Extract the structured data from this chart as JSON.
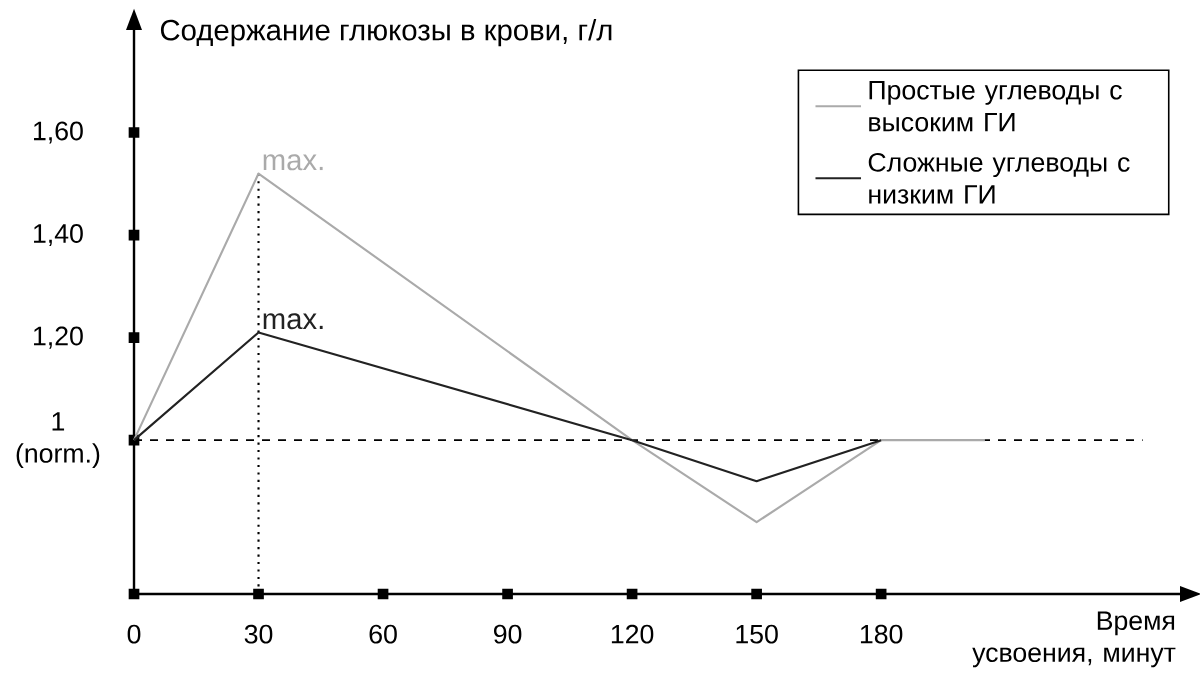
{
  "chart_data": {
    "type": "line",
    "ylabel": "Содержание глюкозы в крови, г/л",
    "xlabel": "Время усвоения, минут",
    "series": [
      {
        "name": "Простые углеводы с высоким ГИ",
        "color": "#aaaaaa",
        "x": [
          0,
          30,
          120,
          150,
          180,
          205
        ],
        "values": [
          1,
          1.52,
          1,
          0.84,
          1,
          1
        ]
      },
      {
        "name": "Сложные углеводы с низким ГИ",
        "color": "#222222",
        "x": [
          0,
          30,
          120,
          150,
          180
        ],
        "values": [
          1,
          1.21,
          1,
          0.92,
          1
        ]
      }
    ],
    "xlim": [
      0,
      252
    ],
    "ylim": [
      0.7,
      1.8
    ],
    "xticks": [
      0,
      30,
      60,
      90,
      120,
      150,
      180
    ],
    "yticks": [
      {
        "value": 1,
        "label": "1 (norm.)"
      },
      {
        "value": 1.2,
        "label": "1,20"
      },
      {
        "value": 1.4,
        "label": "1,40"
      },
      {
        "value": 1.6,
        "label": "1,60"
      }
    ],
    "ref_lines": [
      {
        "axis": "y",
        "value": 1,
        "line_style": "dashed"
      },
      {
        "axis": "x",
        "value": 30,
        "line_style": "dotted"
      }
    ],
    "annotations": [
      {
        "text": "max.",
        "x": 30,
        "y": 1.52
      },
      {
        "text": "max.",
        "x": 30,
        "y": 1.21
      }
    ],
    "legend": "top right",
    "grid": false,
    "marker": "none",
    "line_style": "solid"
  }
}
